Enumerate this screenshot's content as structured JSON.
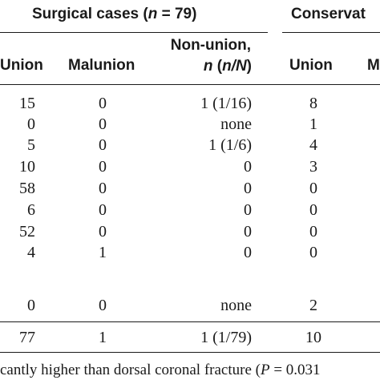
{
  "table": {
    "group_surgical": {
      "prefix": "Surgical cases (",
      "n_symbol": "n",
      "suffix": " = 79)"
    },
    "group_conservative": "Conservat",
    "columns": {
      "union": "Union",
      "malunion": "Malunion",
      "nonunion_line1": "Non-union,",
      "nonunion_line2_n": "n",
      "nonunion_line2_rest": " (",
      "nonunion_line2_nN": "n/N",
      "nonunion_line2_close": ")",
      "union2": "Union",
      "cut": "M"
    },
    "rows": [
      {
        "union": "15",
        "malunion": "0",
        "nonunion": "1 (1/16)",
        "union2": "8"
      },
      {
        "union": "0",
        "malunion": "0",
        "nonunion": "none",
        "union2": "1"
      },
      {
        "union": "5",
        "malunion": "0",
        "nonunion": "1 (1/6)",
        "union2": "4"
      },
      {
        "union": "10",
        "malunion": "0",
        "nonunion": "0",
        "union2": "3"
      },
      {
        "union": "58",
        "malunion": "0",
        "nonunion": "0",
        "union2": "0"
      },
      {
        "union": "6",
        "malunion": "0",
        "nonunion": "0",
        "union2": "0"
      },
      {
        "union": "52",
        "malunion": "0",
        "nonunion": "0",
        "union2": "0"
      },
      {
        "union": "4",
        "malunion": "1",
        "nonunion": "0",
        "union2": "0"
      },
      {
        "union": "0",
        "malunion": "0",
        "nonunion": "none",
        "union2": "2"
      }
    ],
    "total": {
      "union": "77",
      "malunion": "1",
      "nonunion": "1 (1/79)",
      "union2": "10"
    }
  },
  "footnote": {
    "text": "cantly higher than dorsal coronal fracture (",
    "p_symbol": "P",
    "value": " = 0.031"
  }
}
